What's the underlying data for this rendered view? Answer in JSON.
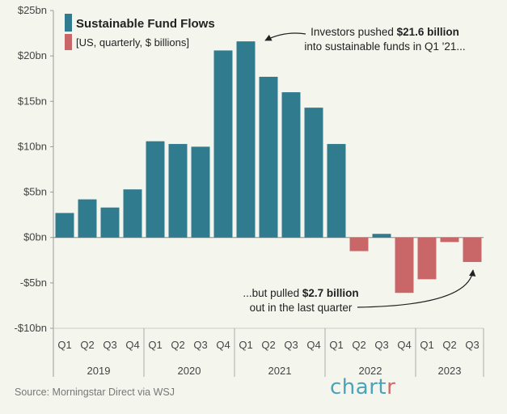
{
  "chart_data": {
    "type": "bar",
    "legend": {
      "title": "Sustainable Fund Flows",
      "subtitle": "[US, quarterly, $ billions]",
      "placement": "top-left"
    },
    "categories": [
      "Q1",
      "Q2",
      "Q3",
      "Q4",
      "Q1",
      "Q2",
      "Q3",
      "Q4",
      "Q1",
      "Q2",
      "Q3",
      "Q4",
      "Q1",
      "Q2",
      "Q3",
      "Q4",
      "Q1",
      "Q2",
      "Q3"
    ],
    "years": [
      {
        "label": "2019",
        "start": 0,
        "count": 4
      },
      {
        "label": "2020",
        "start": 4,
        "count": 4
      },
      {
        "label": "2021",
        "start": 8,
        "count": 4
      },
      {
        "label": "2022",
        "start": 12,
        "count": 4
      },
      {
        "label": "2023",
        "start": 16,
        "count": 3
      }
    ],
    "values": [
      2.7,
      4.2,
      3.3,
      5.3,
      10.6,
      10.3,
      10.0,
      20.6,
      21.6,
      17.7,
      16.0,
      14.3,
      10.3,
      -1.5,
      0.4,
      -6.1,
      -4.6,
      -0.5,
      -2.7
    ],
    "ylim": [
      -10,
      25
    ],
    "yticks": [
      -10,
      -5,
      0,
      5,
      10,
      15,
      20,
      25
    ],
    "ytick_labels": [
      "-$10bn",
      "-$5bn",
      "$0bn",
      "$5bn",
      "$10bn",
      "$15bn",
      "$20bn",
      "$25bn"
    ],
    "grid": false,
    "colors": {
      "positive": "#317b8e",
      "negative": "#c96668"
    },
    "annotations": [
      {
        "line1_pre": "Investors pushed ",
        "line1_bold": "$21.6 billion",
        "line2": "into sustainable funds in Q1 '21...",
        "target_index": 8
      },
      {
        "line1_pre": "...but pulled ",
        "line1_bold": "$2.7 billion",
        "line2": "out in the last quarter",
        "target_index": 18
      }
    ]
  },
  "footer": {
    "source": "Source: Morningstar Direct via WSJ",
    "brand_main": "chart",
    "brand_accent": "r"
  }
}
